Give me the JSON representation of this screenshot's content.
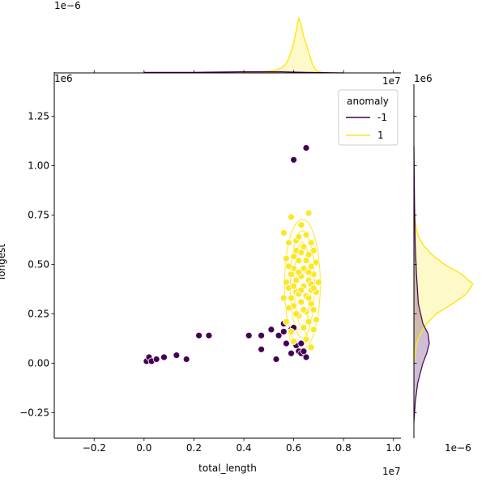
{
  "chart_data": {
    "type": "scatter",
    "xlabel": "total_length",
    "ylabel": "longest",
    "x_offset_label": "1e7",
    "y_offset_label": "1e6",
    "xlim": [
      -0.36,
      1.03
    ],
    "ylim": [
      -0.38,
      1.47
    ],
    "x_ticks": [
      -0.2,
      0.0,
      0.2,
      0.4,
      0.6,
      0.8,
      1.0
    ],
    "x_tick_labels": [
      "−0.2",
      "0.0",
      "0.2",
      "0.4",
      "0.6",
      "0.8",
      "1.0"
    ],
    "y_ticks": [
      -0.25,
      0.0,
      0.25,
      0.5,
      0.75,
      1.0,
      1.25
    ],
    "y_tick_labels": [
      "−0.25",
      "0.00",
      "0.25",
      "0.50",
      "0.75",
      "1.00",
      "1.25"
    ],
    "grid": false,
    "legend_placement": "top-right",
    "legend": {
      "title": "anomaly",
      "entries": [
        {
          "label": "-1",
          "color": "#440154"
        },
        {
          "label": "1",
          "color": "#fde725"
        }
      ]
    },
    "series": [
      {
        "name": "-1",
        "color": "#440154",
        "points": [
          [
            0.01,
            0.01
          ],
          [
            0.02,
            0.03
          ],
          [
            0.03,
            0.01
          ],
          [
            0.05,
            0.02
          ],
          [
            0.08,
            0.03
          ],
          [
            0.13,
            0.04
          ],
          [
            0.17,
            0.02
          ],
          [
            0.22,
            0.14
          ],
          [
            0.26,
            0.14
          ],
          [
            0.42,
            0.14
          ],
          [
            0.47,
            0.14
          ],
          [
            0.47,
            0.07
          ],
          [
            0.51,
            0.17
          ],
          [
            0.53,
            0.02
          ],
          [
            0.54,
            0.14
          ],
          [
            0.56,
            0.16
          ],
          [
            0.56,
            0.2
          ],
          [
            0.57,
            0.1
          ],
          [
            0.59,
            0.17
          ],
          [
            0.59,
            0.05
          ],
          [
            0.6,
            0.18
          ],
          [
            0.61,
            0.09
          ],
          [
            0.62,
            0.06
          ],
          [
            0.63,
            0.05
          ],
          [
            0.64,
            0.06
          ],
          [
            0.65,
            0.03
          ],
          [
            0.63,
            0.1
          ],
          [
            0.6,
            1.03
          ],
          [
            0.65,
            1.09
          ]
        ]
      },
      {
        "name": "1",
        "color": "#fde725",
        "points": [
          [
            0.56,
            0.66
          ],
          [
            0.57,
            0.53
          ],
          [
            0.58,
            0.61
          ],
          [
            0.59,
            0.74
          ],
          [
            0.63,
            0.7
          ],
          [
            0.65,
            0.65
          ],
          [
            0.66,
            0.76
          ],
          [
            0.67,
            0.61
          ],
          [
            0.56,
            0.33
          ],
          [
            0.57,
            0.41
          ],
          [
            0.58,
            0.38
          ],
          [
            0.59,
            0.45
          ],
          [
            0.6,
            0.48
          ],
          [
            0.6,
            0.29
          ],
          [
            0.61,
            0.57
          ],
          [
            0.61,
            0.36
          ],
          [
            0.62,
            0.52
          ],
          [
            0.62,
            0.24
          ],
          [
            0.63,
            0.44
          ],
          [
            0.63,
            0.31
          ],
          [
            0.64,
            0.59
          ],
          [
            0.64,
            0.39
          ],
          [
            0.64,
            0.18
          ],
          [
            0.65,
            0.47
          ],
          [
            0.65,
            0.34
          ],
          [
            0.65,
            0.26
          ],
          [
            0.66,
            0.55
          ],
          [
            0.66,
            0.42
          ],
          [
            0.66,
            0.21
          ],
          [
            0.67,
            0.37
          ],
          [
            0.67,
            0.49
          ],
          [
            0.67,
            0.3
          ],
          [
            0.68,
            0.45
          ],
          [
            0.68,
            0.27
          ],
          [
            0.68,
            0.57
          ],
          [
            0.69,
            0.36
          ],
          [
            0.69,
            0.51
          ],
          [
            0.7,
            0.41
          ],
          [
            0.69,
            0.22
          ],
          [
            0.68,
            0.17
          ],
          [
            0.57,
            0.21
          ],
          [
            0.58,
            0.28
          ],
          [
            0.59,
            0.16
          ],
          [
            0.6,
            0.11
          ],
          [
            0.61,
            0.42
          ],
          [
            0.62,
            0.35
          ],
          [
            0.6,
            0.39
          ],
          [
            0.63,
            0.56
          ],
          [
            0.64,
            0.27
          ],
          [
            0.65,
            0.52
          ],
          [
            0.66,
            0.33
          ],
          [
            0.67,
            0.4
          ],
          [
            0.61,
            0.62
          ],
          [
            0.62,
            0.64
          ],
          [
            0.58,
            0.49
          ],
          [
            0.59,
            0.33
          ],
          [
            0.64,
            0.48
          ],
          [
            0.66,
            0.46
          ],
          [
            0.63,
            0.37
          ],
          [
            0.62,
            0.46
          ],
          [
            0.67,
            0.08
          ],
          [
            0.65,
            0.12
          ],
          [
            0.61,
            0.25
          ],
          [
            0.6,
            0.54
          ],
          [
            0.68,
            0.38
          ]
        ]
      }
    ]
  },
  "marginal_x": {
    "offset_label": "1e−6",
    "density": [
      [
        0.3,
        0.0
      ],
      [
        0.45,
        0.01
      ],
      [
        0.52,
        0.04
      ],
      [
        0.55,
        0.08
      ],
      [
        0.57,
        0.16
      ],
      [
        0.585,
        0.3
      ],
      [
        0.6,
        0.52
      ],
      [
        0.61,
        0.72
      ],
      [
        0.62,
        0.95
      ],
      [
        0.63,
        0.82
      ],
      [
        0.64,
        0.62
      ],
      [
        0.65,
        0.5
      ],
      [
        0.66,
        0.35
      ],
      [
        0.675,
        0.15
      ],
      [
        0.69,
        0.04
      ],
      [
        0.72,
        0.0
      ]
    ],
    "anomaly_density": [
      [
        0.0,
        0.01
      ],
      [
        0.2,
        0.01
      ],
      [
        0.4,
        0.02
      ],
      [
        0.55,
        0.02
      ],
      [
        0.65,
        0.01
      ],
      [
        0.8,
        0.0
      ]
    ]
  },
  "marginal_y": {
    "offset_label": "1e−6",
    "density": [
      [
        0.0,
        0.0
      ],
      [
        0.05,
        0.02
      ],
      [
        0.1,
        0.04
      ],
      [
        0.15,
        0.1
      ],
      [
        0.2,
        0.2
      ],
      [
        0.25,
        0.35
      ],
      [
        0.3,
        0.6
      ],
      [
        0.35,
        0.82
      ],
      [
        0.4,
        0.92
      ],
      [
        0.45,
        0.75
      ],
      [
        0.5,
        0.48
      ],
      [
        0.55,
        0.28
      ],
      [
        0.6,
        0.14
      ],
      [
        0.65,
        0.06
      ],
      [
        0.7,
        0.03
      ],
      [
        0.75,
        0.01
      ],
      [
        0.8,
        0.0
      ]
    ],
    "anomaly_density": [
      [
        -0.3,
        0.0
      ],
      [
        -0.2,
        0.02
      ],
      [
        -0.1,
        0.06
      ],
      [
        0.0,
        0.14
      ],
      [
        0.05,
        0.2
      ],
      [
        0.1,
        0.24
      ],
      [
        0.15,
        0.22
      ],
      [
        0.2,
        0.14
      ],
      [
        0.3,
        0.07
      ],
      [
        0.45,
        0.04
      ],
      [
        0.6,
        0.02
      ],
      [
        0.8,
        0.01
      ],
      [
        1.1,
        0.0
      ]
    ]
  }
}
